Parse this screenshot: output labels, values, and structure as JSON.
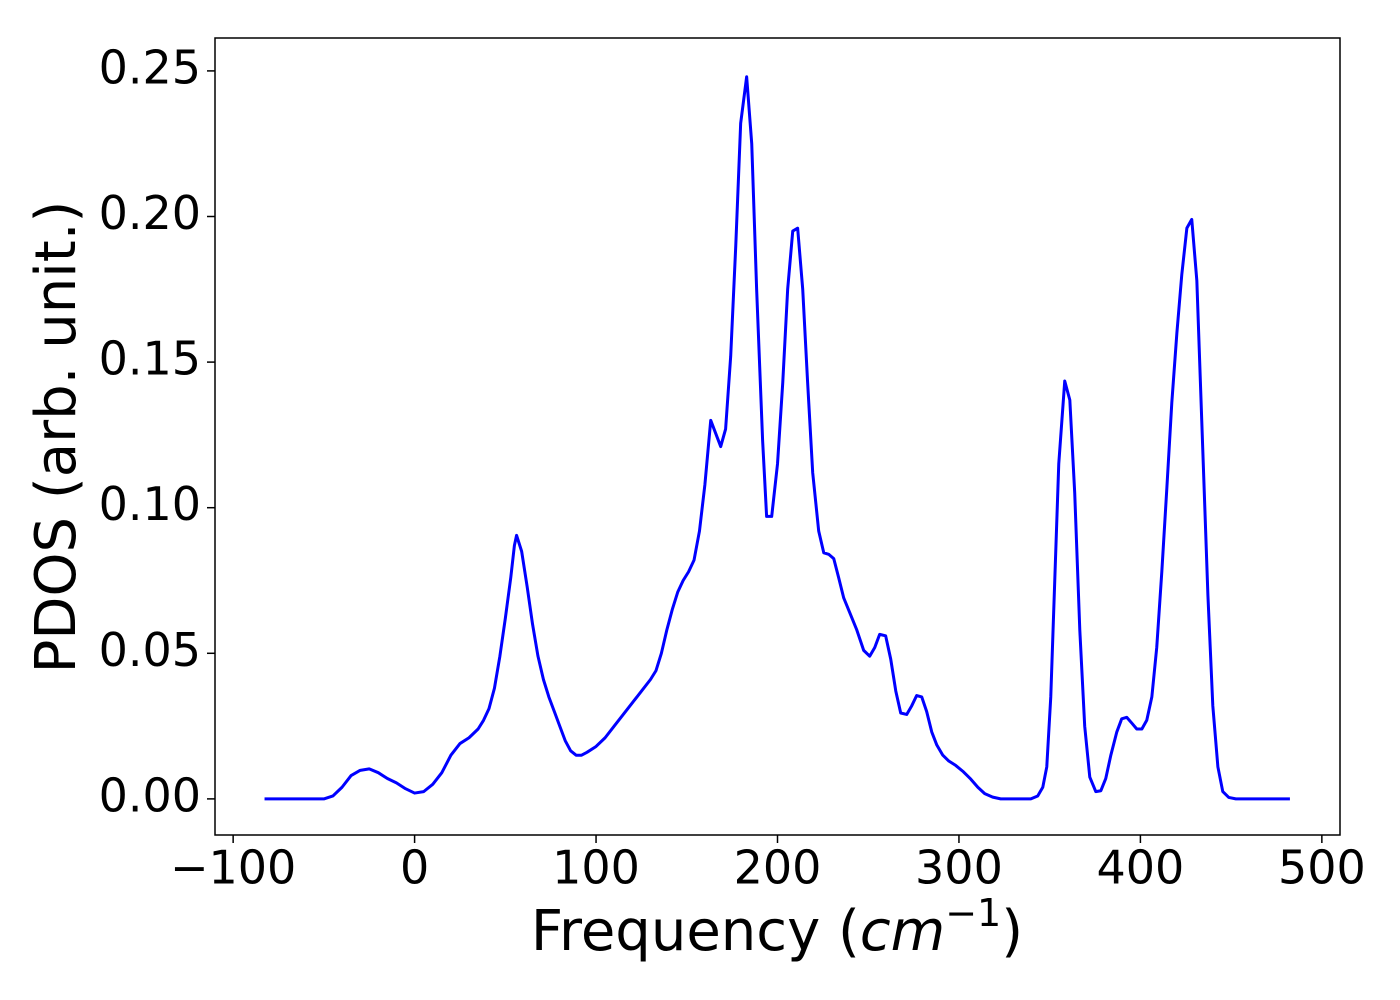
{
  "chart_data": {
    "type": "line",
    "xlabel": {
      "text": "Frequency (",
      "math": "cm",
      "sup": "−1",
      "close": ")"
    },
    "ylabel": "PDOS (arb. unit.)",
    "xlim": [
      -110,
      510
    ],
    "ylim": [
      -0.0124,
      0.2613
    ],
    "xticks": [
      {
        "value": -100,
        "label": "−100"
      },
      0,
      100,
      200,
      300,
      400,
      500
    ],
    "yticks": [
      {
        "value": 0,
        "label": "0.00"
      },
      {
        "value": 0.05,
        "label": "0.05"
      },
      {
        "value": 0.1,
        "label": "0.10"
      },
      {
        "value": 0.15,
        "label": "0.15"
      },
      {
        "value": 0.2,
        "label": "0.20"
      },
      {
        "value": 0.25,
        "label": "0.25"
      }
    ],
    "grid": false,
    "x": [
      -82.7,
      -50,
      -45,
      -40,
      -35,
      -30,
      -25,
      -20,
      -15,
      -10,
      -5,
      0,
      5,
      10,
      15,
      20,
      25,
      30,
      35,
      38,
      41,
      44,
      47,
      50,
      53,
      55,
      56.2,
      59,
      62,
      65,
      68,
      71,
      74,
      77,
      80,
      83,
      86,
      89,
      92,
      95,
      100,
      105,
      110,
      115,
      120,
      125,
      130,
      133,
      136,
      139,
      142,
      145,
      148,
      151,
      154,
      157,
      160,
      163.2,
      168.7,
      171.4,
      174.2,
      177,
      179.7,
      183,
      185.8,
      188.5,
      191.8,
      194,
      196.8,
      200,
      202.9,
      205.6,
      208.4,
      211.1,
      213.9,
      216.6,
      219.4,
      222.7,
      225.5,
      228.2,
      231,
      233.7,
      236.5,
      239.8,
      243.7,
      247.5,
      250.8,
      253.6,
      256.3,
      259.6,
      262.4,
      265.2,
      267.9,
      271.2,
      274,
      276.7,
      279.5,
      282.2,
      285,
      287.8,
      291.1,
      294.4,
      298.2,
      302.1,
      306.5,
      310.4,
      314.2,
      318.6,
      323,
      339.6,
      343.4,
      346.2,
      348.4,
      350.6,
      352.8,
      355,
      358.3,
      361.1,
      363.8,
      366.6,
      369.3,
      372.1,
      375.4,
      378.2,
      380.9,
      383.7,
      387,
      389.7,
      392.5,
      395.3,
      398,
      400.8,
      403.5,
      406.3,
      409,
      411.8,
      414.6,
      417.3,
      420.1,
      422.8,
      425.6,
      428.3,
      431.1,
      433.8,
      437.2,
      439.9,
      442.7,
      445.4,
      448.7,
      452.6,
      482.4
    ],
    "series": [
      {
        "color": "#0000ff",
        "values": [
          0,
          0,
          0.001,
          0.004,
          0.008,
          0.0098,
          0.0103,
          0.009,
          0.007,
          0.0055,
          0.0035,
          0.002,
          0.0025,
          0.005,
          0.009,
          0.015,
          0.019,
          0.021,
          0.024,
          0.027,
          0.031,
          0.038,
          0.049,
          0.062,
          0.076,
          0.087,
          0.0905,
          0.085,
          0.073,
          0.06,
          0.049,
          0.041,
          0.035,
          0.03,
          0.025,
          0.02,
          0.0165,
          0.015,
          0.015,
          0.016,
          0.018,
          0.021,
          0.025,
          0.029,
          0.033,
          0.037,
          0.041,
          0.044,
          0.05,
          0.058,
          0.065,
          0.071,
          0.075,
          0.078,
          0.082,
          0.092,
          0.108,
          0.13,
          0.121,
          0.127,
          0.152,
          0.19,
          0.232,
          0.248,
          0.225,
          0.175,
          0.123,
          0.097,
          0.097,
          0.115,
          0.143,
          0.175,
          0.195,
          0.196,
          0.175,
          0.143,
          0.112,
          0.092,
          0.0845,
          0.084,
          0.0825,
          0.076,
          0.069,
          0.064,
          0.058,
          0.051,
          0.049,
          0.052,
          0.0565,
          0.056,
          0.048,
          0.037,
          0.0295,
          0.029,
          0.032,
          0.0355,
          0.035,
          0.03,
          0.023,
          0.0185,
          0.015,
          0.013,
          0.0115,
          0.0095,
          0.0068,
          0.004,
          0.0018,
          0.0006,
          0,
          0,
          0.001,
          0.004,
          0.011,
          0.035,
          0.075,
          0.115,
          0.1435,
          0.137,
          0.105,
          0.058,
          0.025,
          0.0075,
          0.0025,
          0.0028,
          0.007,
          0.015,
          0.023,
          0.0275,
          0.028,
          0.026,
          0.024,
          0.024,
          0.027,
          0.035,
          0.052,
          0.078,
          0.107,
          0.136,
          0.16,
          0.18,
          0.196,
          0.199,
          0.178,
          0.13,
          0.07,
          0.032,
          0.011,
          0.0025,
          0.0005,
          0,
          0
        ]
      }
    ]
  }
}
